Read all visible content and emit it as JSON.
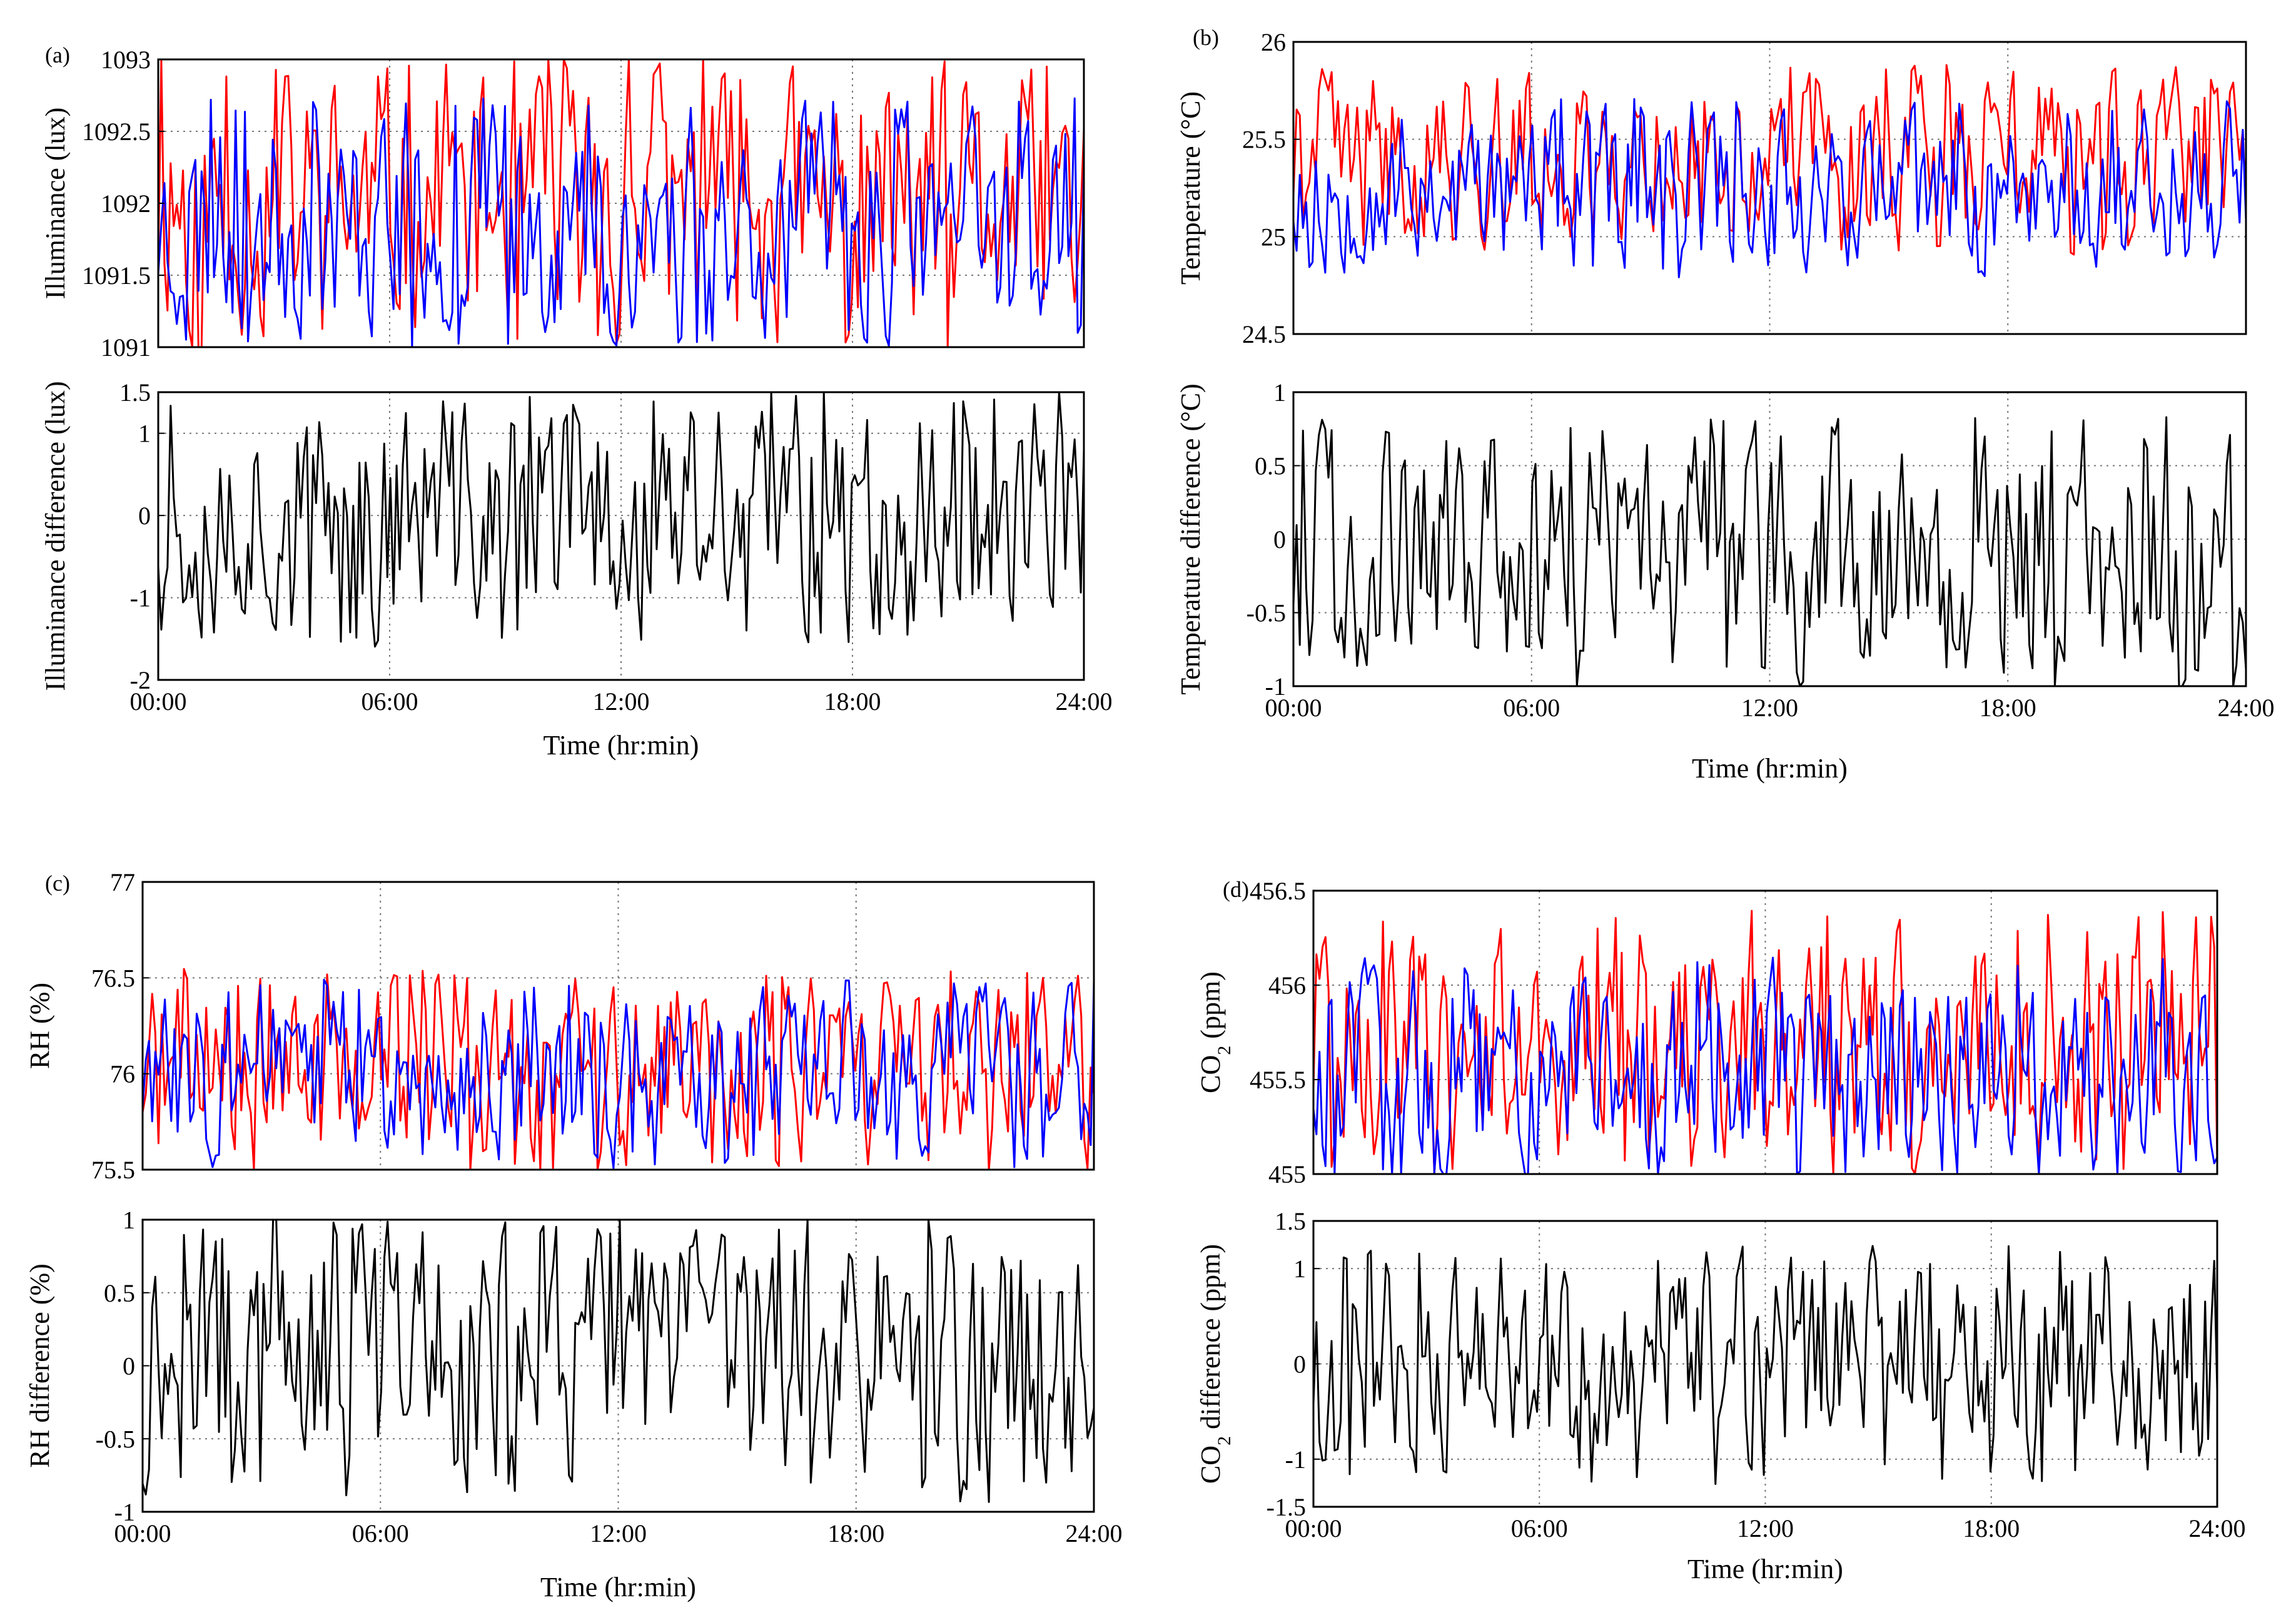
{
  "colors": {
    "red_series": "#ff0000",
    "blue_series": "#0000ff",
    "diff_series": "#000000",
    "grid": "#777777",
    "frame": "#000000"
  },
  "time_ticks": [
    "00:00",
    "06:00",
    "12:00",
    "18:00",
    "24:00"
  ],
  "chart_data": [
    {
      "panel": "(a)",
      "type": "line",
      "x_range": [
        0,
        24
      ],
      "x_unit": "hr",
      "top": {
        "ylabel": "Illuminance (lux)",
        "ylim": [
          1091,
          1093
        ],
        "yticks": [
          1091,
          1091.5,
          1092,
          1092.5,
          1093
        ],
        "ytick_labels": [
          "1091",
          "1091.5",
          "1092",
          "1092.5",
          "1093"
        ],
        "series": [
          {
            "name": "red",
            "color": "#ff0000",
            "mean": 1092.0,
            "amp": 0.95,
            "seed": 11,
            "n": 300
          },
          {
            "name": "blue",
            "color": "#0000ff",
            "mean": 1091.85,
            "amp": 0.8,
            "seed": 23,
            "n": 300
          }
        ]
      },
      "bottom": {
        "ylabel": "Illuminance difference (lux)",
        "ylim": [
          -2,
          1.5
        ],
        "yticks": [
          -2,
          -1,
          0,
          1,
          1.5
        ],
        "ytick_labels": [
          "-2",
          "-1",
          "0",
          "1",
          "1.5"
        ],
        "series": [
          {
            "name": "difference",
            "color": "#000000",
            "mean": 0,
            "amp": 1.45,
            "seed": 37,
            "n": 300
          }
        ]
      },
      "xlabel": "Time (hr:min)"
    },
    {
      "panel": "(b)",
      "type": "line",
      "x_range": [
        0,
        24
      ],
      "x_unit": "hr",
      "top": {
        "ylabel": "Temperature (°C)",
        "ylim": [
          24.5,
          26
        ],
        "yticks": [
          24.5,
          25,
          25.5,
          26
        ],
        "ytick_labels": [
          "24.5",
          "25",
          "25.5",
          "26"
        ],
        "series": [
          {
            "name": "red",
            "color": "#ff0000",
            "mean": 25.4,
            "amp": 0.45,
            "seed": 41,
            "n": 300
          },
          {
            "name": "blue",
            "color": "#0000ff",
            "mean": 25.25,
            "amp": 0.42,
            "seed": 53,
            "n": 300
          }
        ]
      },
      "bottom": {
        "ylabel": "Temperature difference (°C)",
        "ylim": [
          -1,
          1
        ],
        "yticks": [
          -1,
          -0.5,
          0,
          0.5,
          1
        ],
        "ytick_labels": [
          "-1",
          "-0.5",
          "0",
          "0.5",
          "1"
        ],
        "series": [
          {
            "name": "difference",
            "color": "#000000",
            "mean": -0.1,
            "amp": 0.85,
            "seed": 67,
            "n": 300
          }
        ]
      },
      "xlabel": "Time (hr:min)"
    },
    {
      "panel": "(c)",
      "type": "line",
      "x_range": [
        0,
        24
      ],
      "x_unit": "hr",
      "top": {
        "ylabel": "RH (%)",
        "ylim": [
          75.5,
          77
        ],
        "yticks": [
          75.5,
          76,
          76.5,
          77
        ],
        "ytick_labels": [
          "75.5",
          "76",
          "76.5",
          "77"
        ],
        "series": [
          {
            "name": "red",
            "color": "#ff0000",
            "mean": 76.0,
            "amp": 0.5,
            "seed": 71,
            "n": 300
          },
          {
            "name": "blue",
            "color": "#0000ff",
            "mean": 76.0,
            "amp": 0.45,
            "seed": 83,
            "n": 300
          }
        ]
      },
      "bottom": {
        "ylabel": "RH difference (%)",
        "ylim": [
          -1,
          1
        ],
        "yticks": [
          -1,
          -0.5,
          0,
          0.5,
          1
        ],
        "ytick_labels": [
          "-1",
          "-0.5",
          "0",
          "0.5",
          "1"
        ],
        "series": [
          {
            "name": "difference",
            "color": "#000000",
            "mean": 0.05,
            "amp": 0.9,
            "seed": 97,
            "n": 300
          }
        ]
      },
      "xlabel": "Time (hr:min)"
    },
    {
      "panel": "(d)",
      "type": "line",
      "x_range": [
        0,
        24
      ],
      "x_unit": "hr",
      "top": {
        "ylabel": "CO2 (ppm)",
        "ylim": [
          455,
          456.5
        ],
        "yticks": [
          455,
          455.5,
          456,
          456.5
        ],
        "ytick_labels": [
          "455",
          "455.5",
          "456",
          "456.5"
        ],
        "series": [
          {
            "name": "red",
            "color": "#ff0000",
            "mean": 455.7,
            "amp": 0.65,
            "seed": 101,
            "n": 300
          },
          {
            "name": "blue",
            "color": "#0000ff",
            "mean": 455.55,
            "amp": 0.55,
            "seed": 113,
            "n": 300
          }
        ]
      },
      "bottom": {
        "ylabel": "CO2 difference (ppm)",
        "ylim": [
          -1.5,
          1.5
        ],
        "yticks": [
          -1.5,
          -1,
          0,
          1,
          1.5
        ],
        "ytick_labels": [
          "-1.5",
          "-1",
          "0",
          "1",
          "1.5"
        ],
        "series": [
          {
            "name": "difference",
            "color": "#000000",
            "mean": 0,
            "amp": 1.15,
            "seed": 127,
            "n": 300
          }
        ]
      },
      "xlabel": "Time (hr:min)"
    }
  ]
}
